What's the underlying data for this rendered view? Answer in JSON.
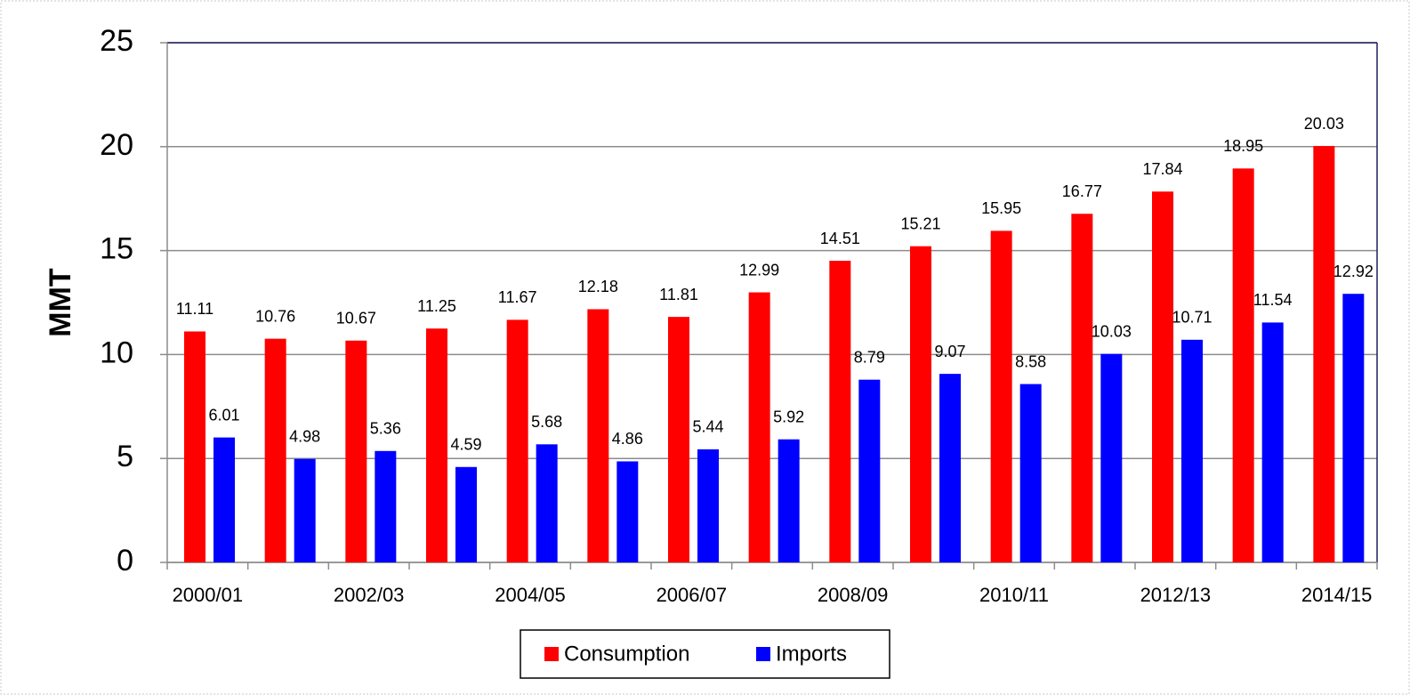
{
  "chart_data": {
    "type": "bar",
    "categories": [
      "2000/01",
      null,
      "2002/03",
      null,
      "2004/05",
      null,
      "2006/07",
      null,
      "2008/09",
      null,
      "2010/11",
      null,
      "2012/13",
      null,
      "2014/15"
    ],
    "series": [
      {
        "name": "Consumption",
        "color": "#ff0000",
        "values": [
          11.11,
          10.76,
          10.67,
          11.25,
          11.67,
          12.18,
          11.81,
          12.99,
          14.51,
          15.21,
          15.95,
          16.77,
          17.84,
          18.95,
          20.03
        ]
      },
      {
        "name": "Imports",
        "color": "#0000ff",
        "values": [
          6.01,
          4.98,
          5.36,
          4.59,
          5.68,
          4.86,
          5.44,
          5.92,
          8.79,
          9.07,
          8.58,
          10.03,
          10.71,
          11.54,
          12.92
        ]
      }
    ],
    "y_label": "MMT",
    "ylim": [
      0,
      25
    ],
    "yticks": [
      0,
      5,
      10,
      15,
      20,
      25
    ],
    "grid": true,
    "legend": "bottom"
  }
}
